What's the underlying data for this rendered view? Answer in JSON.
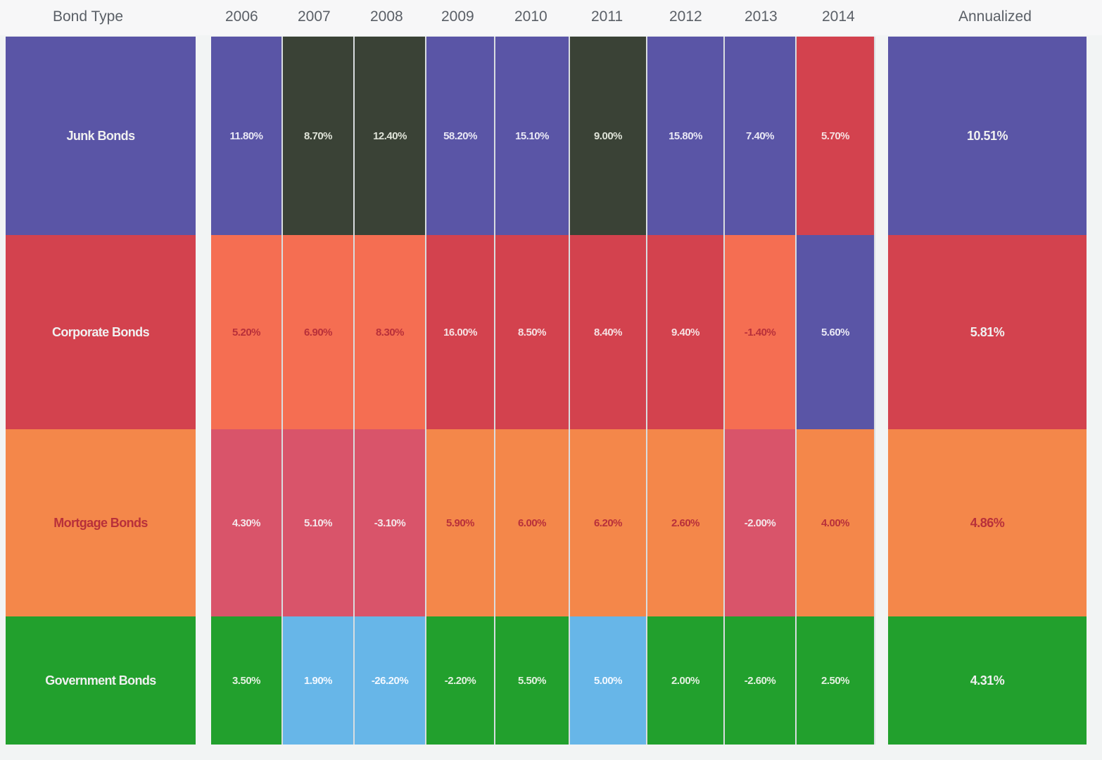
{
  "headers": {
    "bond_type": "Bond Type",
    "annualized": "Annualized",
    "years": [
      "2006",
      "2007",
      "2008",
      "2009",
      "2010",
      "2011",
      "2012",
      "2013",
      "2014"
    ]
  },
  "colors": {
    "Junk": "#5a55a6",
    "Corporate": "#d3424e",
    "Mortgage": "#f4874a",
    "Government": "#22a02d",
    "CorporateLight": "#f56e52",
    "MortgageDark": "#d9546a",
    "Dark": "#3a4236",
    "LightBlue": "#67b6e8"
  },
  "chart_data": {
    "type": "table",
    "title": "",
    "columns": [
      "2006",
      "2007",
      "2008",
      "2009",
      "2010",
      "2011",
      "2012",
      "2013",
      "2014",
      "Annualized"
    ],
    "rows": [
      {
        "name": "Junk Bonds",
        "values": [
          "11.80%",
          "8.70%",
          "12.40%",
          "58.20%",
          "15.10%",
          "9.00%",
          "15.80%",
          "7.40%",
          "5.70%"
        ],
        "colors": [
          "Junk",
          "Dark",
          "Dark",
          "Junk",
          "Junk",
          "Dark",
          "Junk",
          "Junk",
          "Corporate"
        ],
        "annualized": "10.51%",
        "annual_color": "Junk"
      },
      {
        "name": "Corporate Bonds",
        "values": [
          "5.20%",
          "6.90%",
          "8.30%",
          "16.00%",
          "8.50%",
          "8.40%",
          "9.40%",
          "-1.40%",
          "5.60%"
        ],
        "colors": [
          "CorporateLight",
          "CorporateLight",
          "CorporateLight",
          "Corporate",
          "Corporate",
          "Corporate",
          "Corporate",
          "CorporateLight",
          "Junk"
        ],
        "annualized": "5.81%",
        "annual_color": "Corporate"
      },
      {
        "name": "Mortgage Bonds",
        "values": [
          "4.30%",
          "5.10%",
          "-3.10%",
          "5.90%",
          "6.00%",
          "6.20%",
          "2.60%",
          "-2.00%",
          "4.00%"
        ],
        "colors": [
          "MortgageDark",
          "MortgageDark",
          "MortgageDark",
          "Mortgage",
          "Mortgage",
          "Mortgage",
          "Mortgage",
          "MortgageDark",
          "Mortgage"
        ],
        "annualized": "4.86%",
        "annual_color": "Mortgage"
      },
      {
        "name": "Government Bonds",
        "values": [
          "3.50%",
          "1.90%",
          "-26.20%",
          "-2.20%",
          "5.50%",
          "5.00%",
          "2.00%",
          "-2.60%",
          "2.50%"
        ],
        "colors": [
          "Government",
          "LightBlue",
          "LightBlue",
          "Government",
          "Government",
          "LightBlue",
          "Government",
          "Government",
          "Government"
        ],
        "annualized": "4.31%",
        "annual_color": "Government"
      }
    ]
  }
}
